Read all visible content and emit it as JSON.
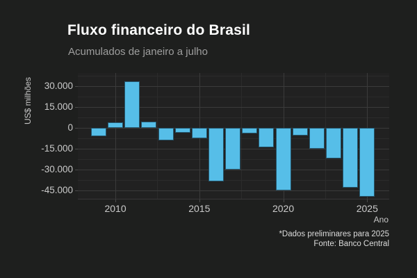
{
  "chart_data": {
    "type": "bar",
    "title": "Fluxo financeiro do Brasil",
    "subtitle": "Acumulados de janeiro a julho",
    "xlabel": "Ano",
    "ylabel": "US$ milhões",
    "categories": [
      2009,
      2010,
      2011,
      2012,
      2013,
      2014,
      2015,
      2016,
      2017,
      2018,
      2019,
      2020,
      2021,
      2022,
      2023,
      2024,
      2025
    ],
    "values": [
      -6000,
      4000,
      33500,
      4500,
      -9000,
      -3500,
      -7500,
      -38500,
      -30000,
      -4000,
      -14000,
      -45000,
      -5500,
      -15000,
      -22000,
      -43000,
      -49500
    ],
    "units": "US$ milhões",
    "ylim": [
      -51200,
      39500
    ],
    "y_major_ticks": [
      30000,
      15000,
      0,
      -15000,
      -30000,
      -45000
    ],
    "y_tick_labels": [
      "30.000",
      "15.000",
      "0",
      "-15.000",
      "-30.000",
      "-45.000"
    ],
    "y_minor_ticks": [
      37500,
      22500,
      7500,
      -7500,
      -22500,
      -37500
    ],
    "x_major_ticks": [
      2010,
      2015,
      2020,
      2025
    ],
    "x_tick_labels": [
      "2010",
      "2015",
      "2020",
      "2025"
    ],
    "x_minor_ticks": [
      2012.5,
      2017.5,
      2022.5
    ],
    "grid": true,
    "legend": false,
    "annotations": [
      "*Dados preliminares para 2025",
      "Fonte: Banco Central"
    ],
    "colors": {
      "bar_fill": "#56BEE8",
      "background": "#1E1F1E",
      "panel": "#212121",
      "grid_major": "#3B3B3B",
      "grid_minor": "#2B2B2B",
      "title_text": "#FFFFFF",
      "subtitle_text": "#9E9E9E",
      "axis_text": "#CACACA"
    }
  }
}
